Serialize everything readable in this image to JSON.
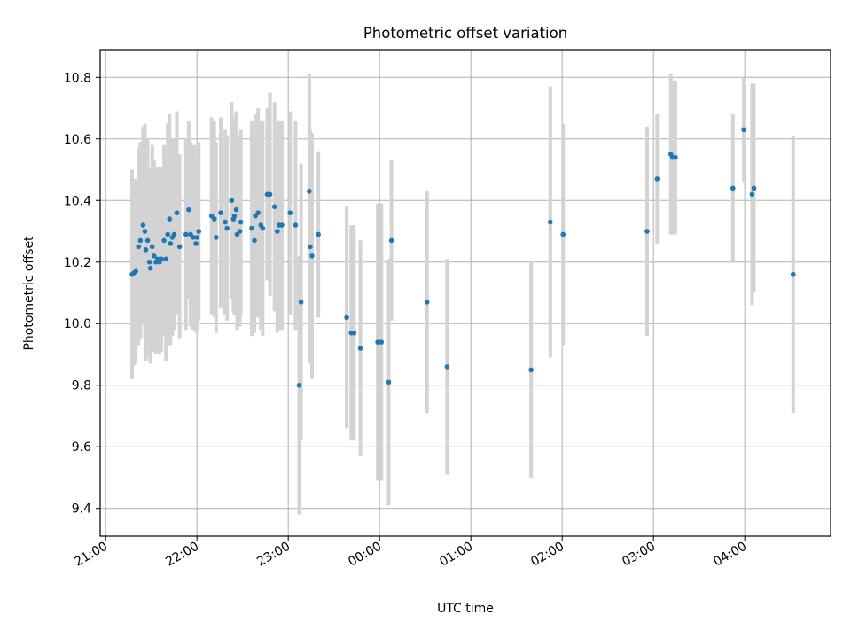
{
  "chart_data": {
    "type": "scatter",
    "title": "Photometric offset variation",
    "xlabel": "UTC time",
    "ylabel": "Photometric offset",
    "x_unit": "hours since 21:00 UTC",
    "xlim": [
      -0.06,
      7.94
    ],
    "ylim": [
      9.31,
      10.89
    ],
    "xticks": [
      {
        "x": 0,
        "label": "21:00"
      },
      {
        "x": 1,
        "label": "22:00"
      },
      {
        "x": 2,
        "label": "23:00"
      },
      {
        "x": 3,
        "label": "00:00"
      },
      {
        "x": 4,
        "label": "01:00"
      },
      {
        "x": 5,
        "label": "02:00"
      },
      {
        "x": 6,
        "label": "03:00"
      },
      {
        "x": 7,
        "label": "04:00"
      }
    ],
    "yticks": [
      {
        "y": 9.4,
        "label": "9.4"
      },
      {
        "y": 9.6,
        "label": "9.6"
      },
      {
        "y": 9.8,
        "label": "9.8"
      },
      {
        "y": 10.0,
        "label": "10.0"
      },
      {
        "y": 10.2,
        "label": "10.2"
      },
      {
        "y": 10.4,
        "label": "10.4"
      },
      {
        "y": 10.6,
        "label": "10.6"
      },
      {
        "y": 10.8,
        "label": "10.8"
      }
    ],
    "grid": true,
    "point_color": "#1f77b4",
    "errorbar_color": "#d3d3d3",
    "points": [
      [
        0.29,
        10.16,
        0.34
      ],
      [
        0.31,
        10.165,
        0.3
      ],
      [
        0.33,
        10.17,
        0.3
      ],
      [
        0.36,
        10.25,
        0.32
      ],
      [
        0.38,
        10.27,
        0.32
      ],
      [
        0.41,
        10.32,
        0.32
      ],
      [
        0.43,
        10.3,
        0.35
      ],
      [
        0.44,
        10.24,
        0.36
      ],
      [
        0.46,
        10.27,
        0.33
      ],
      [
        0.48,
        10.2,
        0.31
      ],
      [
        0.49,
        10.18,
        0.31
      ],
      [
        0.51,
        10.25,
        0.33
      ],
      [
        0.53,
        10.22,
        0.31
      ],
      [
        0.55,
        10.2,
        0.3
      ],
      [
        0.57,
        10.21,
        0.3
      ],
      [
        0.59,
        10.2,
        0.3
      ],
      [
        0.61,
        10.21,
        0.3
      ],
      [
        0.64,
        10.27,
        0.31
      ],
      [
        0.66,
        10.21,
        0.33
      ],
      [
        0.68,
        10.29,
        0.36
      ],
      [
        0.7,
        10.34,
        0.34
      ],
      [
        0.71,
        10.26,
        0.33
      ],
      [
        0.73,
        10.28,
        0.32
      ],
      [
        0.75,
        10.29,
        0.31
      ],
      [
        0.78,
        10.36,
        0.33
      ],
      [
        0.81,
        10.25,
        0.3
      ],
      [
        0.88,
        10.29,
        0.31
      ],
      [
        0.91,
        10.37,
        0.29
      ],
      [
        0.93,
        10.29,
        0.3
      ],
      [
        0.96,
        10.28,
        0.3
      ],
      [
        0.99,
        10.26,
        0.29
      ],
      [
        1.0,
        10.28,
        0.3
      ],
      [
        1.02,
        10.3,
        0.29
      ],
      [
        1.16,
        10.35,
        0.32
      ],
      [
        1.19,
        10.34,
        0.32
      ],
      [
        1.21,
        10.28,
        0.31
      ],
      [
        1.26,
        10.36,
        0.31
      ],
      [
        1.31,
        10.33,
        0.3
      ],
      [
        1.33,
        10.31,
        0.3
      ],
      [
        1.38,
        10.4,
        0.32
      ],
      [
        1.4,
        10.34,
        0.3
      ],
      [
        1.41,
        10.35,
        0.32
      ],
      [
        1.43,
        10.37,
        0.32
      ],
      [
        1.44,
        10.29,
        0.31
      ],
      [
        1.47,
        10.3,
        0.31
      ],
      [
        1.48,
        10.33,
        0.3
      ],
      [
        1.6,
        10.31,
        0.35
      ],
      [
        1.63,
        10.27,
        0.3
      ],
      [
        1.64,
        10.35,
        0.33
      ],
      [
        1.67,
        10.36,
        0.34
      ],
      [
        1.7,
        10.32,
        0.34
      ],
      [
        1.72,
        10.31,
        0.35
      ],
      [
        1.77,
        10.42,
        0.28
      ],
      [
        1.8,
        10.42,
        0.33
      ],
      [
        1.85,
        10.38,
        0.34
      ],
      [
        1.88,
        10.3,
        0.33
      ],
      [
        1.9,
        10.32,
        0.34
      ],
      [
        1.93,
        10.32,
        0.34
      ],
      [
        2.02,
        10.36,
        0.33
      ],
      [
        2.08,
        10.32,
        0.34
      ],
      [
        2.12,
        9.8,
        0.42
      ],
      [
        2.14,
        10.07,
        0.45
      ],
      [
        2.23,
        10.43,
        0.38
      ],
      [
        2.24,
        10.25,
        0.38
      ],
      [
        2.26,
        10.22,
        0.4
      ],
      [
        2.33,
        10.29,
        0.27
      ],
      [
        2.64,
        10.02,
        0.36
      ],
      [
        2.69,
        9.97,
        0.35
      ],
      [
        2.72,
        9.97,
        0.35
      ],
      [
        2.79,
        9.92,
        0.35
      ],
      [
        2.98,
        9.94,
        0.45
      ],
      [
        3.02,
        9.94,
        0.45
      ],
      [
        3.1,
        9.81,
        0.4
      ],
      [
        3.13,
        10.27,
        0.26
      ],
      [
        3.52,
        10.07,
        0.36
      ],
      [
        3.74,
        9.86,
        0.35
      ],
      [
        4.66,
        9.85,
        0.35
      ],
      [
        4.87,
        10.33,
        0.44
      ],
      [
        5.01,
        10.29,
        0.36
      ],
      [
        5.93,
        10.3,
        0.34
      ],
      [
        6.04,
        10.47,
        0.21
      ],
      [
        6.19,
        10.55,
        0.26
      ],
      [
        6.21,
        10.54,
        0.25
      ],
      [
        6.24,
        10.54,
        0.25
      ],
      [
        6.87,
        10.44,
        0.24
      ],
      [
        6.99,
        10.63,
        0.17
      ],
      [
        7.08,
        10.42,
        0.36
      ],
      [
        7.1,
        10.44,
        0.34
      ],
      [
        7.53,
        10.16,
        0.45
      ]
    ]
  }
}
